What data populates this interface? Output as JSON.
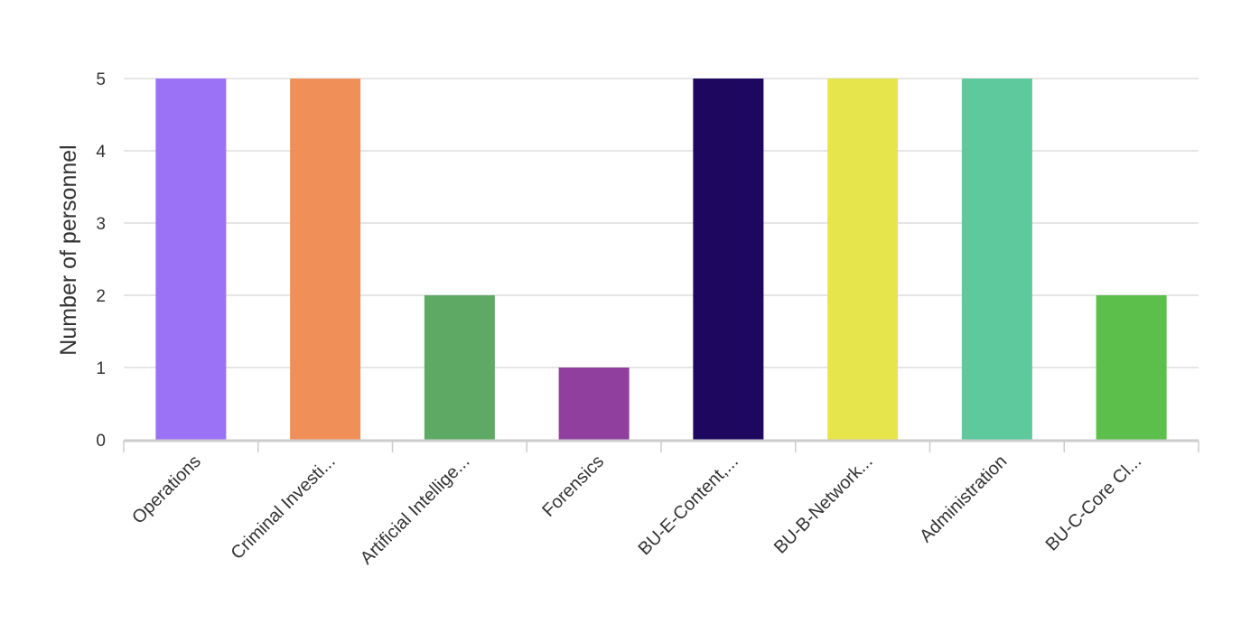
{
  "chart_data": {
    "type": "bar",
    "title": "",
    "xlabel": "",
    "ylabel": "Number of personnel",
    "ylim": [
      0,
      5
    ],
    "y_ticks": [
      "0",
      "1",
      "2",
      "3",
      "4",
      "5"
    ],
    "grid": true,
    "legend": "none",
    "categories": [
      "Operations",
      "Criminal Investi...",
      "Artificial Intellige...",
      "Forensics",
      "BU-E-Content,...",
      "BU-B-Network...",
      "Administration",
      "BU-C-Core Cl..."
    ],
    "values": [
      5,
      5,
      2,
      1,
      5,
      5,
      5,
      2
    ],
    "colors": [
      "#9b72f5",
      "#f09058",
      "#5eaa65",
      "#903f9f",
      "#1d075f",
      "#e7e54c",
      "#5dc99c",
      "#5cbf4c"
    ],
    "grid_color": "#dddddd",
    "axis_color": "#cccccc"
  }
}
